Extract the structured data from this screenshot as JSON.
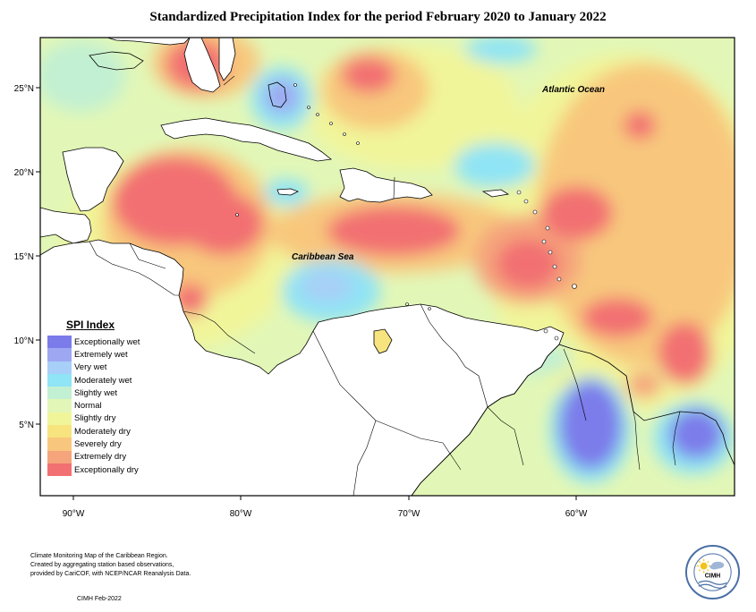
{
  "title": "Standardized Precipitation Index for the period February 2020 to January 2022",
  "labels": {
    "atlantic": "Atlantic Ocean",
    "caribbean": "Caribbean Sea"
  },
  "axes": {
    "lat_ticks": [
      "25°N",
      "20°N",
      "15°N",
      "10°N",
      "5°N"
    ],
    "lon_ticks": [
      "90°W",
      "80°W",
      "70°W",
      "60°W"
    ]
  },
  "legend": {
    "title": "SPI Index",
    "items": [
      {
        "label": "Exceptionally wet",
        "color": "#7b7bea"
      },
      {
        "label": "Extremely wet",
        "color": "#9ea8f2"
      },
      {
        "label": "Very wet",
        "color": "#a8cff7"
      },
      {
        "label": "Moderately wet",
        "color": "#8fe4f5"
      },
      {
        "label": "Slightly wet",
        "color": "#c2f0d2"
      },
      {
        "label": "Normal",
        "color": "#e2f7b7"
      },
      {
        "label": "Slightly dry",
        "color": "#f1f59a"
      },
      {
        "label": "Moderately dry",
        "color": "#f7e47f"
      },
      {
        "label": "Severely dry",
        "color": "#f8c77d"
      },
      {
        "label": "Extremely dry",
        "color": "#f5a47b"
      },
      {
        "label": "Exceptionally dry",
        "color": "#f27072"
      }
    ]
  },
  "footer": {
    "line1": "Climate Monitoring Map of the Caribbean Region.",
    "line2": "Created by aggregating station based observations,",
    "line3": "provided by CariCOF, with NCEP/NCAR Reanalysis Data.",
    "credit": "CIMH Feb-2022",
    "logo_text": "CIMH"
  }
}
